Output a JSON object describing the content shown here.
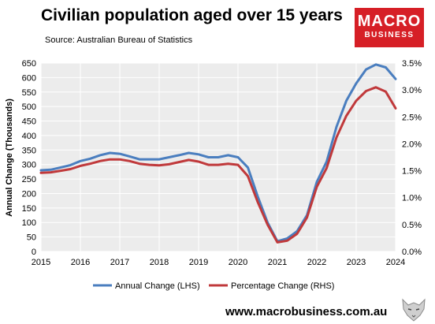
{
  "header": {
    "title": "Civilian population aged over 15 years",
    "source": "Source: Australian Bureau of Statistics"
  },
  "logo": {
    "line1": "MACRO",
    "line2": "BUSINESS",
    "bg_color": "#d61f26"
  },
  "footer": {
    "url": "www.macrobusiness.com.au",
    "wolf_icon": "wolf-head-icon"
  },
  "chart_data": {
    "type": "line",
    "ylabel": "Annual Change (Thousands)",
    "x_ticks": [
      "2015",
      "2016",
      "2017",
      "2018",
      "2019",
      "2020",
      "2021",
      "2022",
      "2023",
      "2024"
    ],
    "x_range": [
      2015,
      2024
    ],
    "y_left_range": [
      0,
      650
    ],
    "y_left_ticks": [
      "0",
      "50",
      "100",
      "150",
      "200",
      "250",
      "300",
      "350",
      "400",
      "450",
      "500",
      "550",
      "600",
      "650"
    ],
    "y_right_range": [
      0,
      3.5
    ],
    "y_right_ticks": [
      "0.0%",
      "0.5%",
      "1.0%",
      "1.5%",
      "2.0%",
      "2.5%",
      "3.0%",
      "3.5%"
    ],
    "grid": true,
    "legend_position": "bottom",
    "series": [
      {
        "name": "Annual Change (LHS)",
        "color": "#4a7ebf",
        "axis": "left",
        "x": [
          2015.0,
          2015.25,
          2015.5,
          2015.75,
          2016.0,
          2016.25,
          2016.5,
          2016.75,
          2017.0,
          2017.25,
          2017.5,
          2017.75,
          2018.0,
          2018.25,
          2018.5,
          2018.75,
          2019.0,
          2019.25,
          2019.5,
          2019.75,
          2020.0,
          2020.25,
          2020.5,
          2020.75,
          2021.0,
          2021.25,
          2021.5,
          2021.75,
          2022.0,
          2022.25,
          2022.5,
          2022.75,
          2023.0,
          2023.25,
          2023.5,
          2023.75,
          2024.0
        ],
        "values": [
          280,
          282,
          290,
          298,
          312,
          320,
          332,
          340,
          337,
          328,
          318,
          318,
          318,
          325,
          332,
          340,
          335,
          325,
          325,
          332,
          325,
          290,
          190,
          100,
          35,
          45,
          70,
          125,
          240,
          310,
          430,
          520,
          580,
          628,
          645,
          635,
          595
        ]
      },
      {
        "name": "Percentage Change (RHS)",
        "color": "#c0393b",
        "axis": "right",
        "x": [
          2015.0,
          2015.25,
          2015.5,
          2015.75,
          2016.0,
          2016.25,
          2016.5,
          2016.75,
          2017.0,
          2017.25,
          2017.5,
          2017.75,
          2018.0,
          2018.25,
          2018.5,
          2018.75,
          2019.0,
          2019.25,
          2019.5,
          2019.75,
          2020.0,
          2020.25,
          2020.5,
          2020.75,
          2021.0,
          2021.25,
          2021.5,
          2021.75,
          2022.0,
          2022.25,
          2022.5,
          2022.75,
          2023.0,
          2023.25,
          2023.5,
          2023.75,
          2024.0
        ],
        "values": [
          1.46,
          1.47,
          1.5,
          1.53,
          1.59,
          1.63,
          1.68,
          1.71,
          1.71,
          1.68,
          1.63,
          1.61,
          1.6,
          1.62,
          1.66,
          1.7,
          1.67,
          1.61,
          1.61,
          1.63,
          1.61,
          1.4,
          0.92,
          0.5,
          0.17,
          0.2,
          0.33,
          0.63,
          1.2,
          1.55,
          2.12,
          2.52,
          2.8,
          2.98,
          3.05,
          2.97,
          2.66
        ]
      }
    ]
  }
}
